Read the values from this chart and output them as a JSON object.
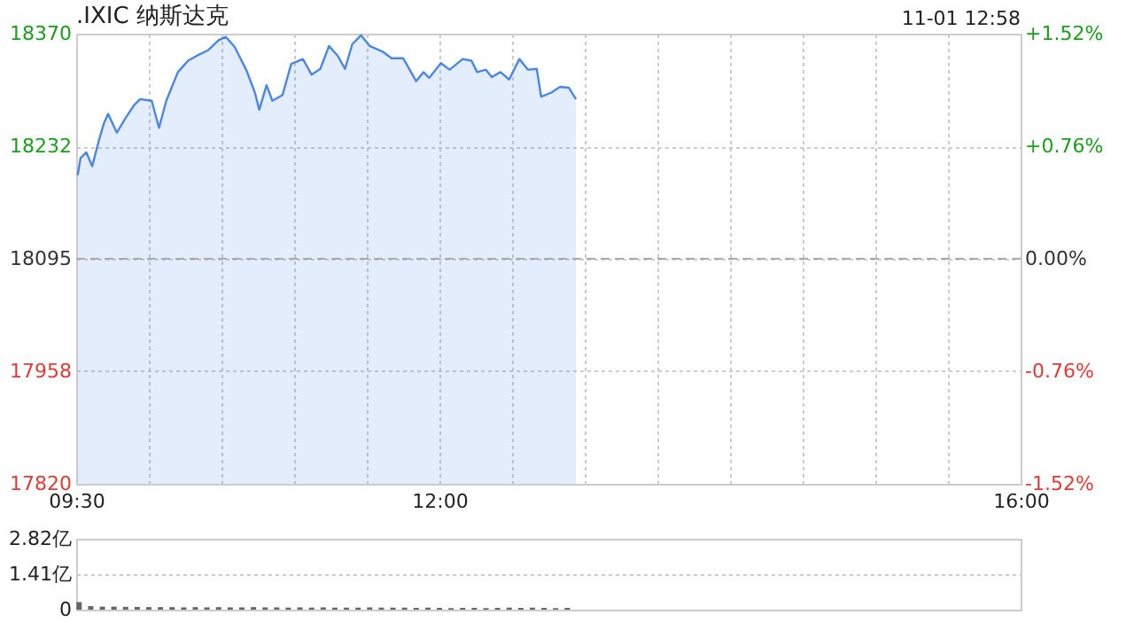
{
  "chart_data": [
    {
      "type": "area",
      "title": ".IXIC 纳斯达克",
      "annotations": [
        "11-01 12:58"
      ],
      "x": [
        9.51,
        9.53,
        9.57,
        9.61,
        9.66,
        9.69,
        9.72,
        9.78,
        9.84,
        9.9,
        9.94,
        10.02,
        10.07,
        10.12,
        10.2,
        10.27,
        10.33,
        10.41,
        10.48,
        10.53,
        10.59,
        10.67,
        10.73,
        10.76,
        10.81,
        10.85,
        10.92,
        10.98,
        11.06,
        11.12,
        11.18,
        11.24,
        11.3,
        11.35,
        11.4,
        11.46,
        11.52,
        11.61,
        11.67,
        11.75,
        11.84,
        11.89,
        11.93,
        12.01,
        12.07,
        12.16,
        12.22,
        12.26,
        12.32,
        12.36,
        12.42,
        12.48,
        12.55,
        12.61,
        12.67,
        12.7,
        12.77,
        12.83,
        12.89,
        12.94
      ],
      "series": [
        {
          "color": "#4a86e8",
          "values": [
            18197,
            18218,
            18225,
            18208,
            18242,
            18260,
            18272,
            18249,
            18267,
            18283,
            18290,
            18288,
            18255,
            18288,
            18323,
            18337,
            18343,
            18350,
            18362,
            18366,
            18354,
            18326,
            18298,
            18277,
            18307,
            18288,
            18295,
            18333,
            18339,
            18320,
            18327,
            18355,
            18343,
            18327,
            18357,
            18368,
            18355,
            18348,
            18340,
            18340,
            18312,
            18323,
            18316,
            18334,
            18326,
            18339,
            18337,
            18323,
            18326,
            18317,
            18323,
            18314,
            18339,
            18326,
            18327,
            18293,
            18298,
            18305,
            18304,
            18290
          ]
        }
      ],
      "xlim": [
        9.5,
        16
      ],
      "xticks": [
        {
          "value": 9.5,
          "label": "09:30"
        },
        {
          "value": 10,
          "label": null
        },
        {
          "value": 10.5,
          "label": null
        },
        {
          "value": 11,
          "label": null
        },
        {
          "value": 11.5,
          "label": null
        },
        {
          "value": 12,
          "label": "12:00"
        },
        {
          "value": 12.5,
          "label": null
        },
        {
          "value": 13,
          "label": null
        },
        {
          "value": 13.5,
          "label": null
        },
        {
          "value": 14,
          "label": null
        },
        {
          "value": 14.5,
          "label": null
        },
        {
          "value": 15,
          "label": null
        },
        {
          "value": 15.5,
          "label": null
        },
        {
          "value": 16,
          "label": "16:00"
        }
      ],
      "ylim": [
        17820,
        18370
      ],
      "yticks": [
        17820,
        17958,
        18095,
        18232,
        18370
      ],
      "y2lim": [
        -1.52,
        1.52
      ],
      "y2ticks": [
        {
          "value": -1.52,
          "label": "-1.52%"
        },
        {
          "value": -0.76,
          "label": "-0.76%"
        },
        {
          "value": 0,
          "label": "0.00%"
        },
        {
          "value": 0.76,
          "label": "+0.76%"
        },
        {
          "value": 1.52,
          "label": "+1.52%"
        }
      ],
      "grid": true,
      "ref_lines": [
        {
          "axis": "y",
          "value": 18095,
          "color": "#aaaaaa",
          "line_style": "dashed"
        }
      ]
    },
    {
      "type": "bar",
      "color": "#666666",
      "tick_labels": "y",
      "grid": "y",
      "x": [
        9.52,
        9.6,
        9.68,
        9.76,
        9.84,
        9.92,
        10.0,
        10.08,
        10.16,
        10.24,
        10.32,
        10.4,
        10.48,
        10.56,
        10.64,
        10.72,
        10.8,
        10.88,
        10.96,
        11.04,
        11.12,
        11.2,
        11.28,
        11.36,
        11.44,
        11.52,
        11.6,
        11.68,
        11.76,
        11.84,
        11.92,
        12.0,
        12.08,
        12.16,
        12.24,
        12.32,
        12.4,
        12.48,
        12.56,
        12.64,
        12.72,
        12.8,
        12.88
      ],
      "values": [
        0.3,
        0.14,
        0.12,
        0.12,
        0.11,
        0.11,
        0.1,
        0.1,
        0.1,
        0.09,
        0.1,
        0.09,
        0.1,
        0.09,
        0.09,
        0.1,
        0.09,
        0.09,
        0.08,
        0.09,
        0.08,
        0.09,
        0.08,
        0.08,
        0.08,
        0.09,
        0.08,
        0.08,
        0.08,
        0.07,
        0.08,
        0.07,
        0.06,
        0.07,
        0.07,
        0.06,
        0.07,
        0.08,
        0.07,
        0.08,
        0.07,
        0.06,
        0.07
      ],
      "xlim": [
        9.5,
        16
      ],
      "ylim": [
        0,
        2.82
      ],
      "yticks": [
        0,
        {
          "value": 1.41,
          "label": "1.41亿"
        },
        {
          "value": 2.82,
          "label": "2.82亿"
        }
      ]
    }
  ]
}
